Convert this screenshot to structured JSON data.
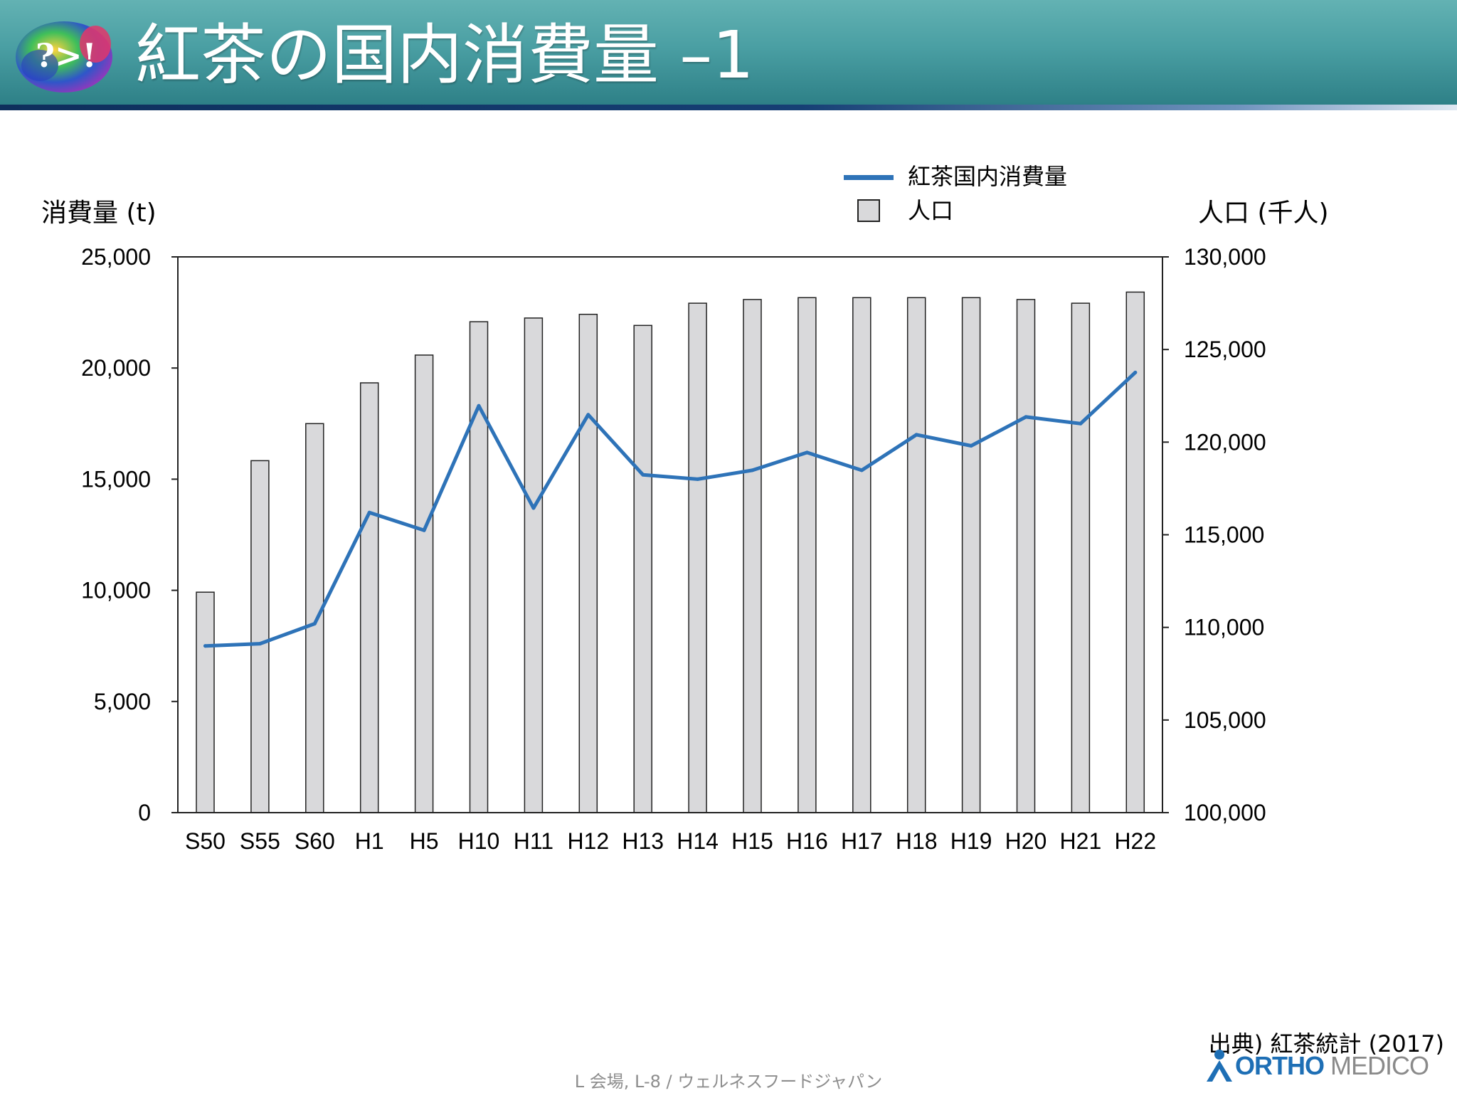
{
  "slide": {
    "title": "紅茶の国内消費量 –1",
    "source": "出典) 紅茶統計 (2017)",
    "footer": "L 会場, L-8 / ウェルネスフードジャパン",
    "brand": {
      "part1": "ORTHO",
      "part2": " MEDICO"
    },
    "logo_text": "?>!"
  },
  "colors": {
    "line": "#2e73b8",
    "bar_fill": "#d9d9db",
    "bar_stroke": "#222222"
  },
  "chart_data": {
    "type": "bar+line",
    "categories": [
      "S50",
      "S55",
      "S60",
      "H1",
      "H5",
      "H10",
      "H11",
      "H12",
      "H13",
      "H14",
      "H15",
      "H16",
      "H17",
      "H18",
      "H19",
      "H20",
      "H21",
      "H22"
    ],
    "series": [
      {
        "name": "紅茶国内消費量",
        "type": "line",
        "axis": "left",
        "values": [
          7500,
          7600,
          8500,
          13500,
          12700,
          18300,
          13700,
          17900,
          15200,
          15000,
          15400,
          16200,
          15400,
          17000,
          16500,
          17800,
          17500,
          19800
        ]
      },
      {
        "name": "人口",
        "type": "bar",
        "axis": "right",
        "values": [
          111900,
          119000,
          121000,
          123200,
          124700,
          126500,
          126700,
          126900,
          126300,
          127500,
          127700,
          127800,
          127800,
          127800,
          127800,
          127700,
          127500,
          128100
        ]
      }
    ],
    "ylabel": "消費量 (t)",
    "y2label": "人口 (千人)",
    "ylim": [
      0,
      25000
    ],
    "y2lim": [
      100000,
      130000
    ],
    "yticks": [
      "0",
      "5,000",
      "10,000",
      "15,000",
      "20,000",
      "25,000"
    ],
    "y2ticks": [
      "100,000",
      "105,000",
      "110,000",
      "115,000",
      "120,000",
      "125,000",
      "130,000"
    ],
    "legend": "top-right",
    "grid": false
  }
}
